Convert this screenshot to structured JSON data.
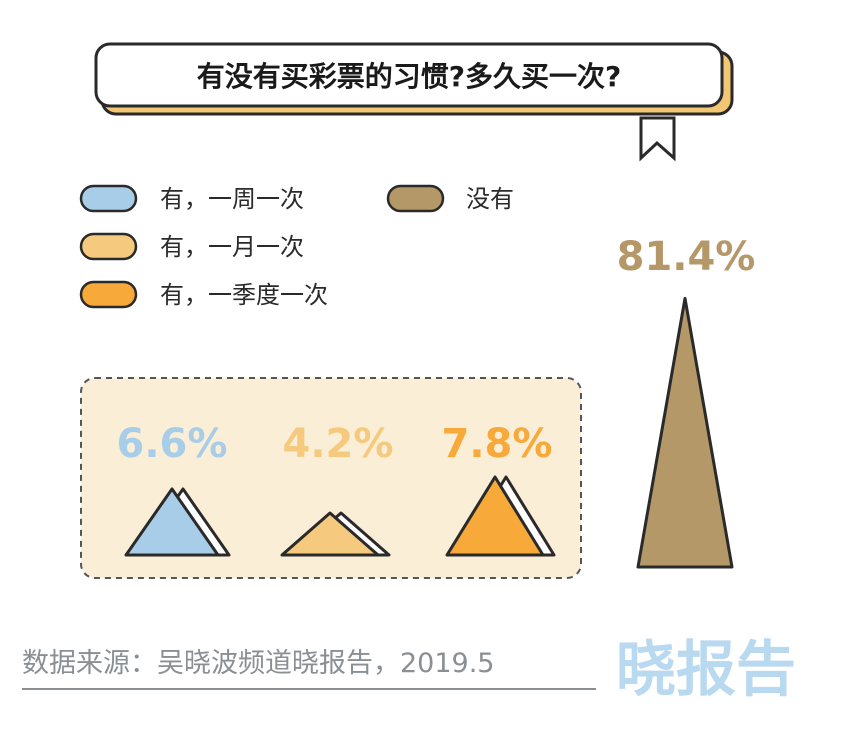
{
  "header": {
    "title": "有没有买彩票的习惯?多久买一次?"
  },
  "chart_data": {
    "type": "bar",
    "categories": [
      "有，一周一次",
      "有，一月一次",
      "有，一季度一次",
      "没有"
    ],
    "values": [
      6.6,
      4.2,
      7.8,
      81.4
    ],
    "value_labels": [
      "6.6%",
      "4.2%",
      "7.8%",
      "81.4%"
    ],
    "unit": "%",
    "colors": [
      "#a8cde8",
      "#f5c97e",
      "#f7a93a",
      "#b59868"
    ],
    "legend": {
      "placement": "top-left",
      "items": [
        {
          "label": "有，一周一次",
          "color": "#a8cde8"
        },
        {
          "label": "有，一月一次",
          "color": "#f5c97e"
        },
        {
          "label": "有，一季度一次",
          "color": "#f7a93a"
        },
        {
          "label": "没有",
          "color": "#b59868"
        }
      ]
    }
  },
  "footer": {
    "source": "数据来源：吴晓波频道晓报告，2019.5",
    "brand": "晓报告"
  }
}
